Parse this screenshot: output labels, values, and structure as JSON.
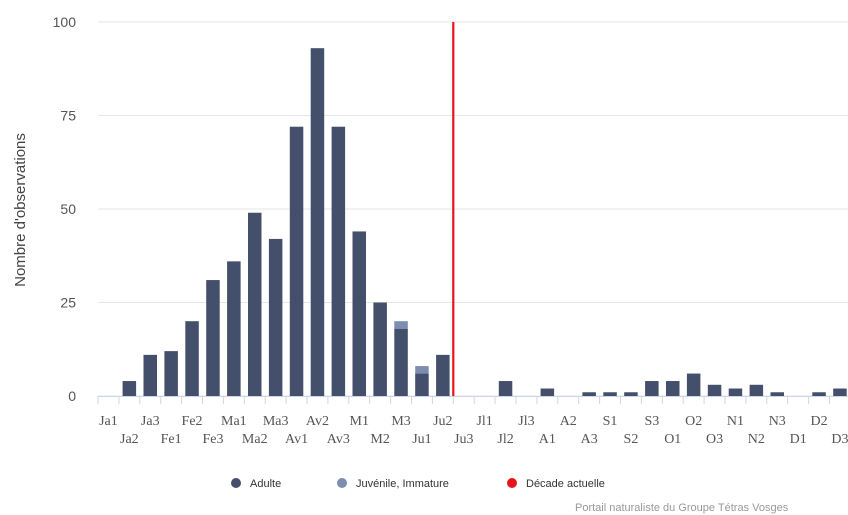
{
  "chart_data": {
    "type": "bar",
    "ylabel": "Nombre d'observations",
    "ylim": [
      0,
      100
    ],
    "yticks": [
      "0",
      "25",
      "50",
      "75",
      "100"
    ],
    "categories": [
      "Ja1",
      "Ja2",
      "Ja3",
      "Fe1",
      "Fe2",
      "Fe3",
      "Ma1",
      "Ma2",
      "Ma3",
      "Av1",
      "Av2",
      "Av3",
      "M1",
      "M2",
      "M3",
      "Ju1",
      "Ju2",
      "Ju3",
      "Jl1",
      "Jl2",
      "Jl3",
      "A1",
      "A2",
      "A3",
      "S1",
      "S2",
      "S3",
      "O1",
      "O2",
      "O3",
      "N1",
      "N2",
      "N3",
      "D1",
      "D2",
      "D3"
    ],
    "series": [
      {
        "name": "Adulte",
        "color": "#444f6b",
        "values": [
          0,
          4,
          11,
          12,
          20,
          31,
          36,
          49,
          42,
          72,
          93,
          72,
          44,
          25,
          18,
          6,
          11,
          0,
          0,
          4,
          0,
          2,
          0,
          1,
          1,
          1,
          4,
          4,
          6,
          3,
          2,
          3,
          1,
          0,
          1,
          2
        ]
      },
      {
        "name": "Juvénile, Immature",
        "color": "#7b8eb0",
        "values": [
          0,
          0,
          0,
          0,
          0,
          0,
          0,
          0,
          0,
          0,
          0,
          0,
          0,
          0,
          2,
          2,
          0,
          0,
          0,
          0,
          0,
          0,
          0,
          0,
          0,
          0,
          0,
          0,
          0,
          0,
          0,
          0,
          0,
          0,
          0,
          0
        ]
      }
    ],
    "current_decade": {
      "name": "Décade actuelle",
      "category": "Ju3",
      "color": "#e8141c"
    },
    "grid": true,
    "legend": "bottom"
  },
  "legend": {
    "items": [
      {
        "label": "Adulte",
        "color": "#444f6b"
      },
      {
        "label": "Juvénile, Immature",
        "color": "#7b8eb0"
      },
      {
        "label": "Décade actuelle",
        "color": "#e8141c"
      }
    ]
  },
  "credit": "Portail naturaliste du Groupe Tétras Vosges"
}
